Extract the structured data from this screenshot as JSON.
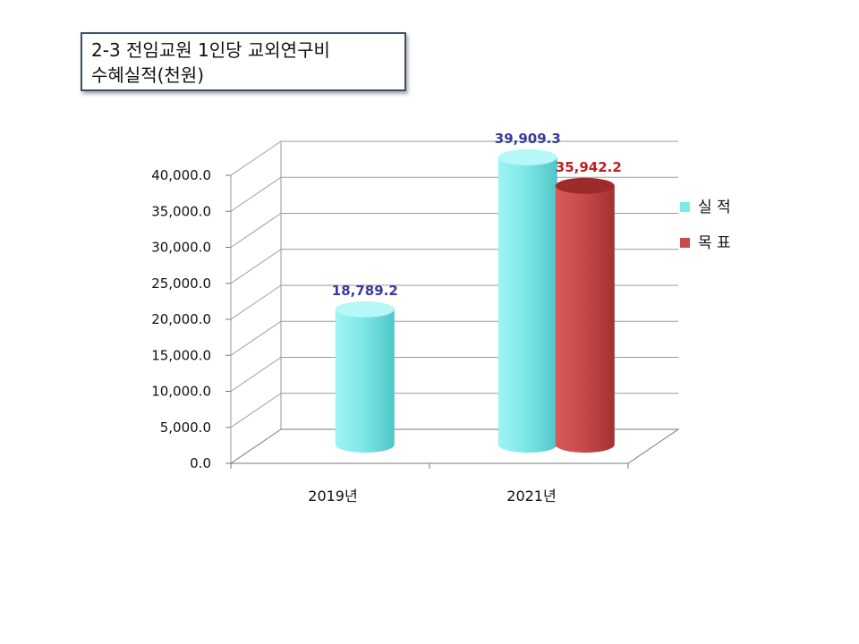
{
  "title": {
    "line1": "2-3 전임교원 1인당 교외연구비",
    "line2": "수혜실적(천원)"
  },
  "chart_data": {
    "type": "bar",
    "style": "3d-cylinder",
    "categories": [
      "2019년",
      "2021년"
    ],
    "series": [
      {
        "name": "실 적",
        "values": [
          18789.2,
          39909.3
        ],
        "labels": [
          "18,789.2",
          "39,909.3"
        ],
        "color": "#7fe8e8",
        "label_color": "#3a3a9a"
      },
      {
        "name": "목 표",
        "values": [
          null,
          35942.2
        ],
        "labels": [
          null,
          "35,942.2"
        ],
        "color": "#c94a4a",
        "label_color": "#c0201e"
      }
    ],
    "ylim": [
      0,
      40000
    ],
    "yticks": [
      "0.0",
      "5,000.0",
      "10,000.0",
      "15,000.0",
      "20,000.0",
      "25,000.0",
      "30,000.0",
      "35,000.0",
      "40,000.0"
    ],
    "grid": true,
    "legend": "right"
  }
}
